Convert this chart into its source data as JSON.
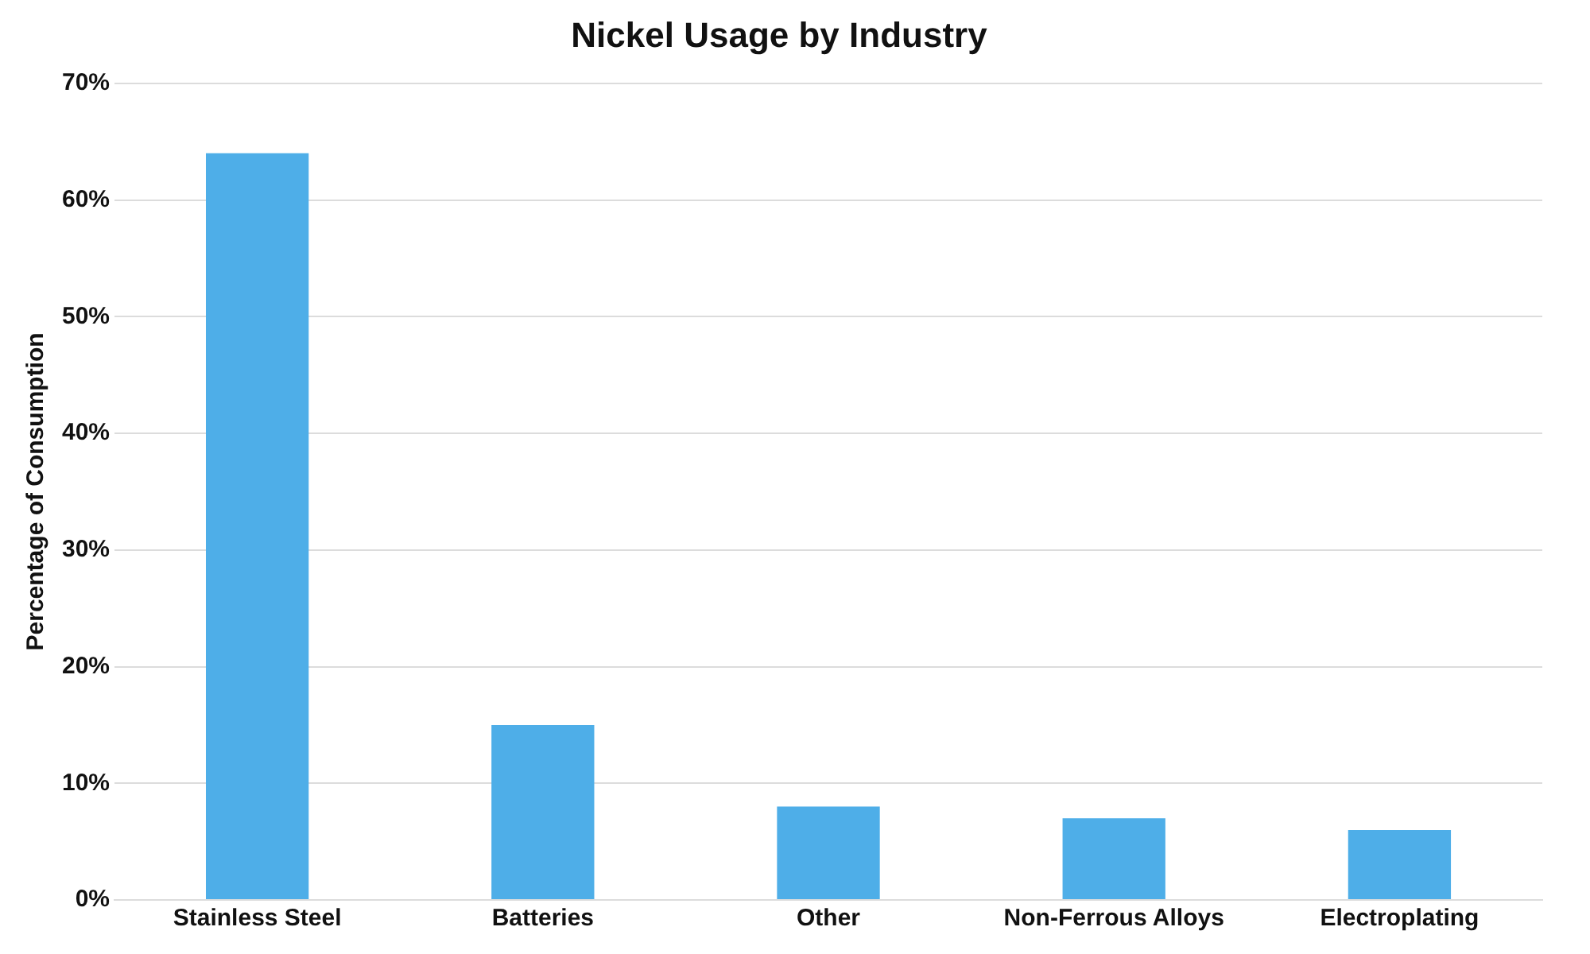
{
  "chart_data": {
    "type": "bar",
    "title": "Nickel Usage by Industry",
    "ylabel": "Percentage of Consumption",
    "categories": [
      "Stainless Steel",
      "Batteries",
      "Other",
      "Non-Ferrous Alloys",
      "Electroplating"
    ],
    "values": [
      64,
      15,
      8,
      7,
      6
    ],
    "color": "#4eaee8",
    "ylim": [
      0,
      70
    ],
    "yticks": [
      {
        "value": 0,
        "label": "0%"
      },
      {
        "value": 10,
        "label": "10%"
      },
      {
        "value": 20,
        "label": "20%"
      },
      {
        "value": 30,
        "label": "30%"
      },
      {
        "value": 40,
        "label": "40%"
      },
      {
        "value": 50,
        "label": "50%"
      },
      {
        "value": 60,
        "label": "60%"
      },
      {
        "value": 70,
        "label": "70%"
      }
    ],
    "grid": "y",
    "legend": false
  }
}
